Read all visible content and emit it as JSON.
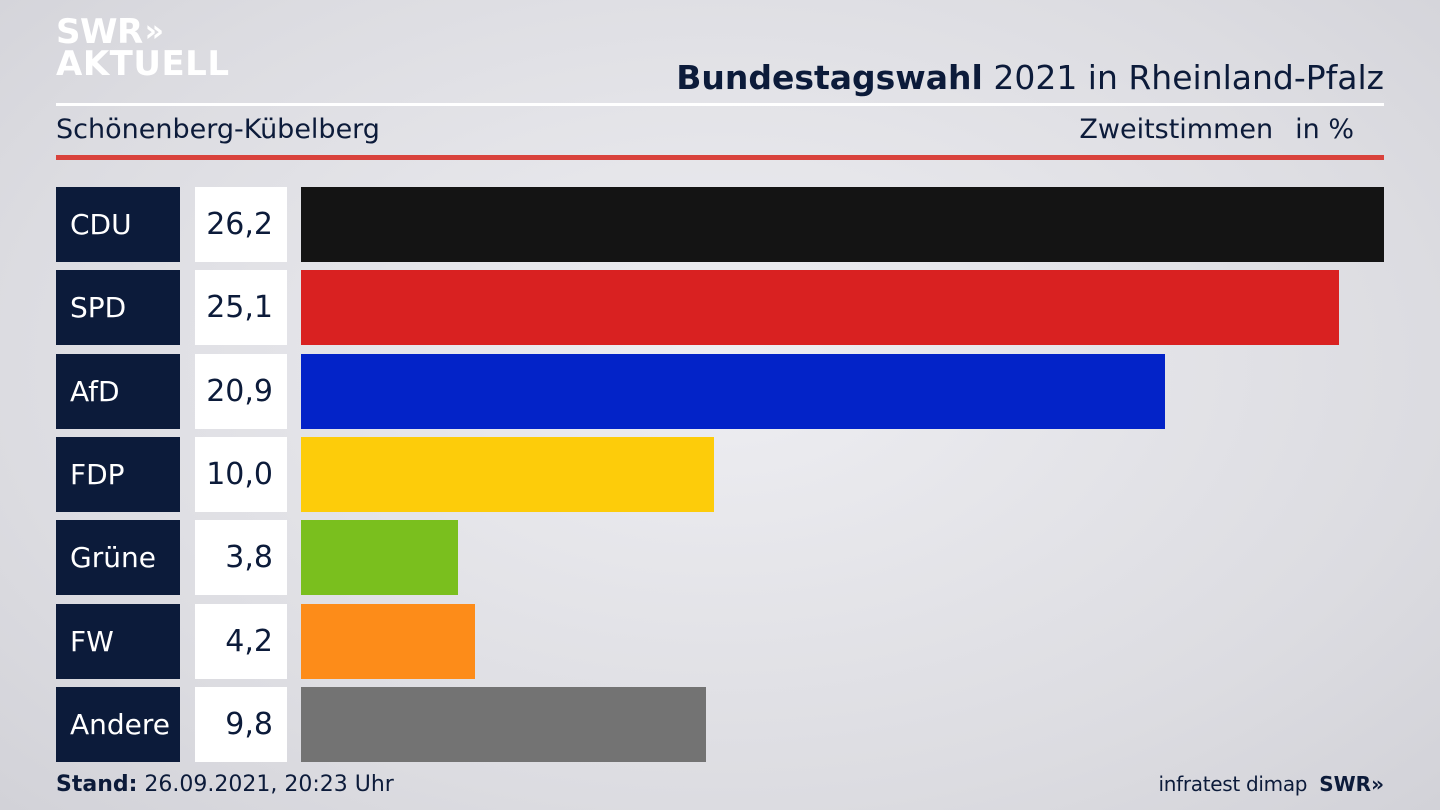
{
  "logo": {
    "line1": "SWR",
    "chevrons": "»",
    "line2": "AKTUELL"
  },
  "header": {
    "title_bold": "Bundestagswahl",
    "title_rest": " 2021 in Rheinland-Pfalz",
    "subtitle": "Schönenberg-Kübelberg",
    "measure": "Zweitstimmen",
    "unit": "in %"
  },
  "colors": {
    "navy": "#0c1b3a",
    "accent_red": "#d9423c"
  },
  "chart_data": {
    "type": "bar",
    "orientation": "horizontal",
    "categories": [
      "CDU",
      "SPD",
      "AfD",
      "FDP",
      "Grüne",
      "FW",
      "Andere"
    ],
    "values": [
      26.2,
      25.1,
      20.9,
      10.0,
      3.8,
      4.2,
      9.8
    ],
    "value_labels": [
      "26,2",
      "25,1",
      "20,9",
      "10,0",
      "3,8",
      "4,2",
      "9,8"
    ],
    "colors": [
      "#141414",
      "#d92121",
      "#0323c8",
      "#fdcc0a",
      "#7abf1e",
      "#fd8c19",
      "#737373"
    ],
    "title": "Bundestagswahl 2021 in Rheinland-Pfalz",
    "subtitle": "Schönenberg-Kübelberg",
    "unit": "in %",
    "xlim": [
      0,
      26.2
    ]
  },
  "footer": {
    "stand_label": "Stand:",
    "stand_value": " 26.09.2021, 20:23 Uhr",
    "source": "infratest dimap",
    "brand": "SWR»"
  }
}
